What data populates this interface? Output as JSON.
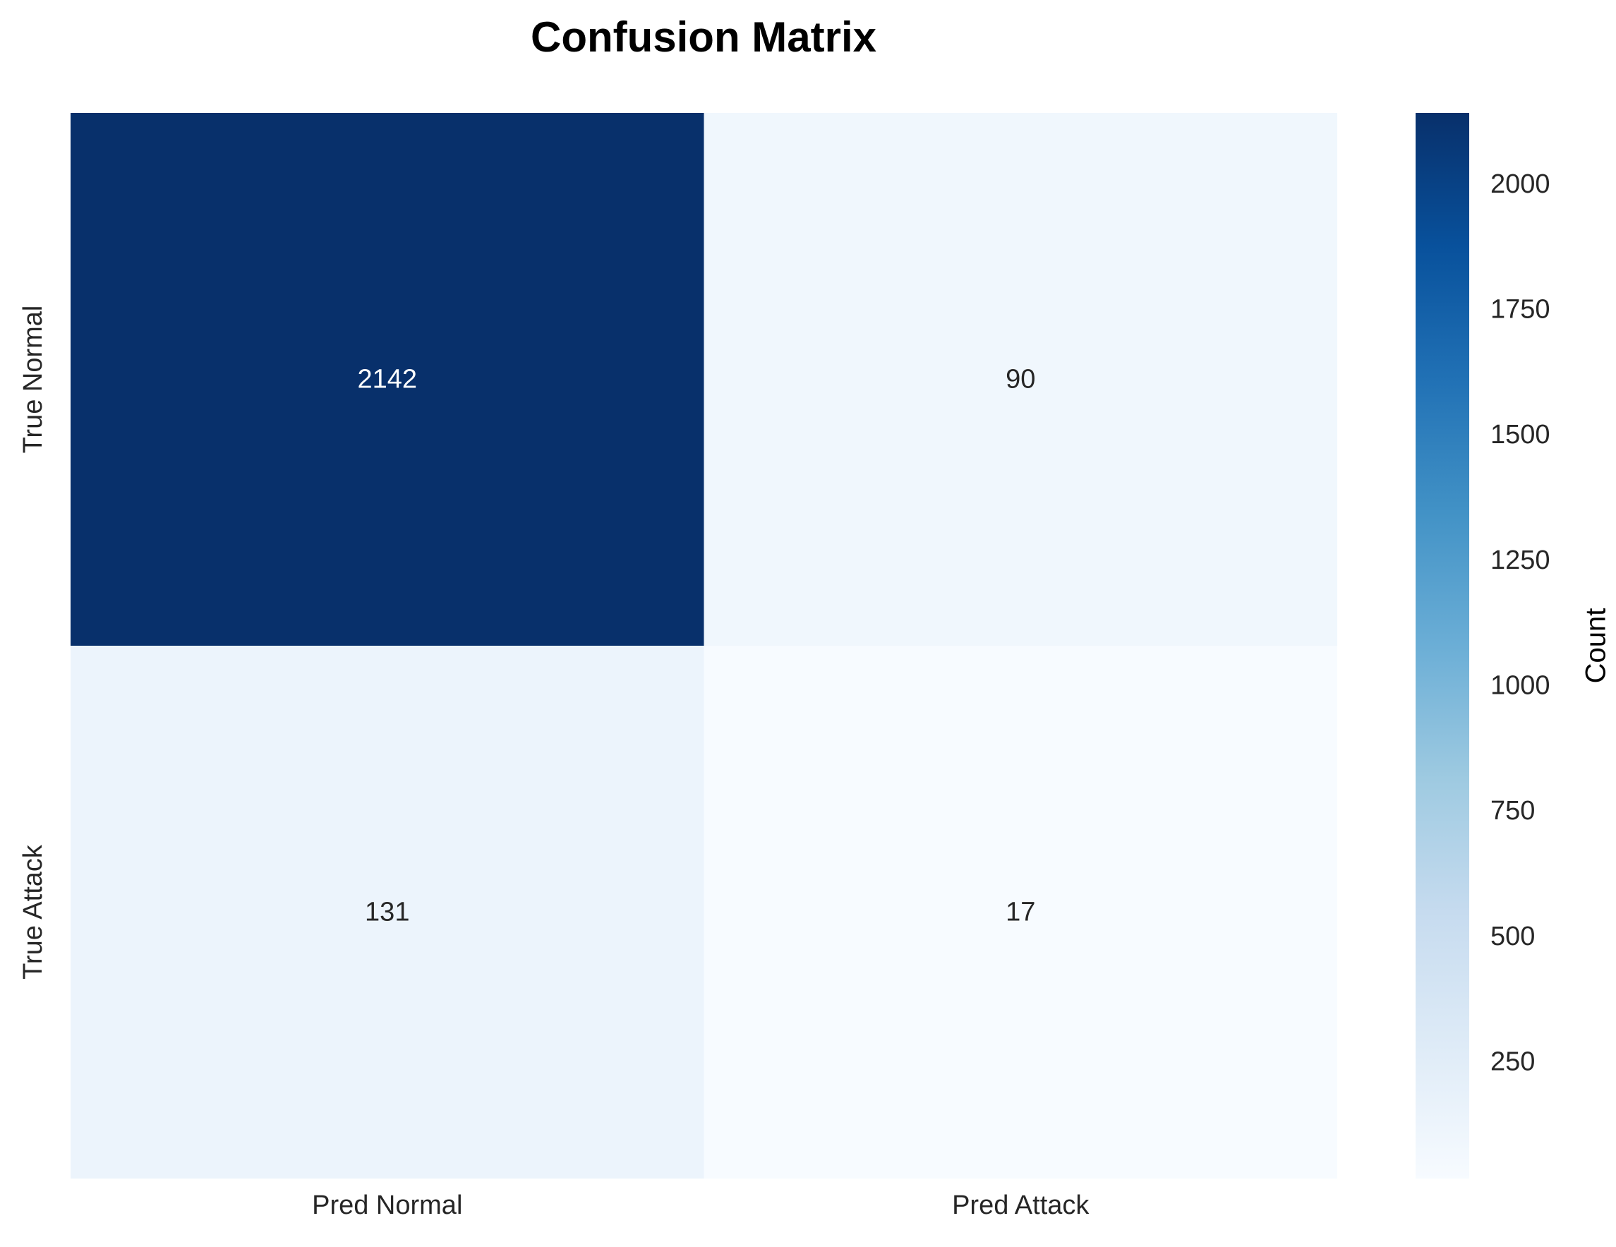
{
  "chart_data": {
    "type": "heatmap",
    "title": "Confusion Matrix",
    "row_labels": [
      "True Normal",
      "True Attack"
    ],
    "col_labels": [
      "Pred Normal",
      "Pred Attack"
    ],
    "values": [
      [
        2142,
        90
      ],
      [
        131,
        17
      ]
    ],
    "colormap": "Blues",
    "colorbar": {
      "label": "Count",
      "min": 17,
      "max": 2142,
      "ticks": [
        250,
        500,
        750,
        1000,
        1250,
        1500,
        1750,
        2000
      ]
    },
    "annotation_colors": {
      "dark_cell": "#ffffff",
      "light_cell": "#262626"
    }
  }
}
